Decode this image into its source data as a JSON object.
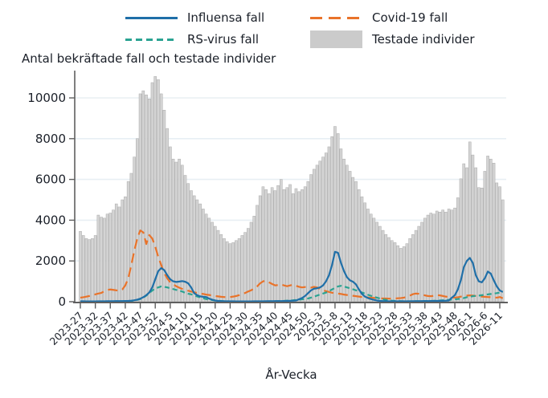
{
  "title": "Antal bekräftade fall och testade individer",
  "xlabel": "År-Vecka",
  "legend": {
    "items": [
      {
        "label": "Influensa fall",
        "marker": "line-solid",
        "color": "#1f6fa8"
      },
      {
        "label": "Covid-19 fall",
        "marker": "line-longdash",
        "color": "#e9732a"
      },
      {
        "label": "RS-virus fall",
        "marker": "line-dash",
        "color": "#2ba392"
      },
      {
        "label": "Testade individer",
        "marker": "box",
        "color": "#cbcbcb"
      }
    ]
  },
  "chart_data": {
    "type": "bar+line combo",
    "title": "Antal bekräftade fall och testade individer",
    "xlabel": "År-Vecka",
    "ylabel": "",
    "ylim": [
      0,
      11200
    ],
    "yticks": [
      0,
      2000,
      4000,
      6000,
      8000,
      10000
    ],
    "grid": "horizontal",
    "legend_position": "top",
    "x_tick_every": 5,
    "x": [
      "2023-27",
      "2023-28",
      "2023-29",
      "2023-30",
      "2023-31",
      "2023-32",
      "2023-33",
      "2023-34",
      "2023-35",
      "2023-36",
      "2023-37",
      "2023-38",
      "2023-39",
      "2023-40",
      "2023-41",
      "2023-42",
      "2023-43",
      "2023-44",
      "2023-45",
      "2023-46",
      "2023-47",
      "2023-48",
      "2023-49",
      "2023-50",
      "2023-51",
      "2023-52",
      "2024-1",
      "2024-2",
      "2024-3",
      "2024-4",
      "2024-5",
      "2024-6",
      "2024-7",
      "2024-8",
      "2024-9",
      "2024-10",
      "2024-11",
      "2024-12",
      "2024-13",
      "2024-14",
      "2024-15",
      "2024-16",
      "2024-17",
      "2024-18",
      "2024-19",
      "2024-20",
      "2024-21",
      "2024-22",
      "2024-23",
      "2024-24",
      "2024-25",
      "2024-26",
      "2024-27",
      "2024-28",
      "2024-29",
      "2024-30",
      "2024-31",
      "2024-32",
      "2024-33",
      "2024-34",
      "2024-35",
      "2024-36",
      "2024-37",
      "2024-38",
      "2024-39",
      "2024-40",
      "2024-41",
      "2024-42",
      "2024-43",
      "2024-44",
      "2024-45",
      "2024-46",
      "2024-47",
      "2024-48",
      "2024-49",
      "2024-50",
      "2024-51",
      "2024-52",
      "2025-1",
      "2025-2",
      "2025-3",
      "2025-4",
      "2025-5",
      "2025-6",
      "2025-7",
      "2025-8",
      "2025-9",
      "2025-10",
      "2025-11",
      "2025-12",
      "2025-13",
      "2025-14",
      "2025-15",
      "2025-16",
      "2025-17",
      "2025-18",
      "2025-19",
      "2025-20",
      "2025-21",
      "2025-22",
      "2025-23",
      "2025-24",
      "2025-25",
      "2025-26",
      "2025-27",
      "2025-28",
      "2025-29",
      "2025-30",
      "2025-31",
      "2025-32",
      "2025-33",
      "2025-34",
      "2025-35",
      "2025-36",
      "2025-37",
      "2025-38",
      "2025-39",
      "2025-40",
      "2025-41",
      "2025-42",
      "2025-43",
      "2025-44",
      "2025-45",
      "2025-46",
      "2025-47",
      "2025-48",
      "2025-49",
      "2025-50",
      "2025-51",
      "2025-52",
      "2026-1",
      "2026-2",
      "2026-3",
      "2026-4",
      "2026-5",
      "2026-6",
      "2026-7",
      "2026-8",
      "2026-9",
      "2026-10",
      "2026-11",
      "2026-12"
    ],
    "bars": {
      "name": "Testade individer",
      "color": "#d4d4d4",
      "border": "#ababab",
      "values": [
        3450,
        3250,
        3100,
        3050,
        3100,
        3250,
        4250,
        4150,
        4100,
        4300,
        4350,
        4500,
        4800,
        4650,
        5000,
        5150,
        5900,
        6300,
        7100,
        8000,
        10200,
        10350,
        10150,
        9950,
        10750,
        11050,
        10900,
        10200,
        9400,
        8500,
        7600,
        7000,
        6850,
        7000,
        6700,
        6200,
        5800,
        5450,
        5200,
        5000,
        4800,
        4550,
        4300,
        4100,
        3900,
        3700,
        3500,
        3300,
        3100,
        2950,
        2850,
        2900,
        3000,
        3100,
        3250,
        3400,
        3600,
        3900,
        4200,
        4730,
        5200,
        5640,
        5500,
        5300,
        5600,
        5450,
        5700,
        6000,
        5500,
        5600,
        5750,
        5300,
        5550,
        5400,
        5500,
        5640,
        5900,
        6240,
        6500,
        6700,
        6900,
        7100,
        7300,
        7600,
        8100,
        8600,
        8250,
        7500,
        7000,
        6700,
        6400,
        6100,
        5900,
        5500,
        5150,
        4850,
        4550,
        4300,
        4100,
        3900,
        3700,
        3500,
        3300,
        3150,
        3000,
        2900,
        2750,
        2620,
        2700,
        2850,
        3100,
        3300,
        3500,
        3700,
        3900,
        4100,
        4250,
        4350,
        4300,
        4450,
        4400,
        4500,
        4400,
        4550,
        4500,
        4600,
        5100,
        6030,
        6770,
        6575,
        7840,
        7200,
        6575,
        5600,
        5580,
        6400,
        7150,
        7000,
        6800,
        5830,
        5640,
        5000
      ]
    },
    "series": [
      {
        "name": "Influensa fall",
        "color": "#1f6fa8",
        "dash": "solid",
        "values": [
          20,
          20,
          15,
          15,
          15,
          15,
          20,
          20,
          20,
          25,
          25,
          25,
          30,
          30,
          30,
          35,
          40,
          50,
          70,
          100,
          150,
          220,
          320,
          450,
          700,
          1100,
          1500,
          1650,
          1550,
          1300,
          1100,
          1000,
          970,
          990,
          1010,
          980,
          900,
          700,
          420,
          320,
          260,
          240,
          230,
          150,
          100,
          60,
          40,
          30,
          25,
          20,
          20,
          20,
          15,
          15,
          15,
          15,
          15,
          15,
          20,
          20,
          20,
          20,
          25,
          25,
          25,
          30,
          30,
          30,
          35,
          40,
          45,
          50,
          60,
          120,
          180,
          280,
          420,
          560,
          640,
          660,
          700,
          800,
          1000,
          1300,
          1800,
          2450,
          2400,
          1900,
          1500,
          1200,
          1050,
          980,
          850,
          600,
          380,
          250,
          180,
          130,
          90,
          60,
          40,
          30,
          25,
          20,
          20,
          20,
          20,
          20,
          20,
          20,
          20,
          25,
          25,
          25,
          30,
          30,
          30,
          35,
          35,
          40,
          40,
          45,
          50,
          60,
          200,
          320,
          600,
          1050,
          1700,
          2000,
          2150,
          1900,
          1300,
          1000,
          950,
          1150,
          1480,
          1380,
          1050,
          750,
          550,
          480
        ]
      },
      {
        "name": "Covid-19 fall",
        "color": "#e9732a",
        "dash": "12 6",
        "values": [
          200,
          220,
          250,
          280,
          320,
          360,
          400,
          430,
          520,
          580,
          600,
          580,
          560,
          540,
          600,
          800,
          1150,
          1800,
          2500,
          3100,
          3500,
          3400,
          2830,
          3270,
          3100,
          2700,
          2200,
          1800,
          1400,
          1150,
          950,
          850,
          760,
          690,
          630,
          580,
          540,
          500,
          460,
          430,
          400,
          380,
          350,
          330,
          300,
          280,
          260,
          240,
          230,
          220,
          230,
          250,
          280,
          320,
          370,
          430,
          500,
          560,
          650,
          750,
          900,
          1000,
          1030,
          950,
          870,
          800,
          820,
          850,
          800,
          760,
          800,
          830,
          780,
          730,
          700,
          720,
          700,
          690,
          730,
          700,
          620,
          560,
          520,
          480,
          440,
          420,
          400,
          380,
          350,
          330,
          310,
          290,
          270,
          250,
          230,
          220,
          210,
          200,
          190,
          180,
          170,
          160,
          160,
          150,
          150,
          160,
          170,
          180,
          200,
          240,
          300,
          370,
          400,
          390,
          360,
          310,
          280,
          270,
          290,
          330,
          310,
          280,
          250,
          230,
          210,
          200,
          220,
          250,
          280,
          300,
          310,
          300,
          280,
          260,
          250,
          240,
          230,
          220,
          210,
          200,
          230,
          170
        ]
      },
      {
        "name": "RS-virus fall",
        "color": "#2ba392",
        "dash": "6 4",
        "values": [
          10,
          10,
          10,
          10,
          10,
          10,
          10,
          10,
          15,
          15,
          15,
          15,
          20,
          20,
          20,
          25,
          30,
          40,
          60,
          90,
          130,
          200,
          300,
          420,
          550,
          650,
          700,
          750,
          730,
          700,
          660,
          620,
          580,
          540,
          500,
          430,
          390,
          360,
          310,
          260,
          210,
          170,
          130,
          100,
          80,
          60,
          45,
          35,
          25,
          20,
          15,
          15,
          10,
          10,
          10,
          10,
          10,
          10,
          10,
          10,
          15,
          15,
          15,
          20,
          20,
          25,
          30,
          35,
          40,
          50,
          60,
          70,
          85,
          100,
          115,
          130,
          160,
          200,
          250,
          300,
          350,
          400,
          450,
          520,
          600,
          680,
          750,
          780,
          750,
          700,
          660,
          610,
          560,
          500,
          450,
          400,
          340,
          290,
          240,
          200,
          160,
          120,
          90,
          70,
          50,
          40,
          30,
          25,
          20,
          20,
          20,
          20,
          25,
          25,
          30,
          30,
          35,
          40,
          45,
          50,
          60,
          70,
          80,
          90,
          100,
          115,
          130,
          150,
          180,
          220,
          250,
          270,
          290,
          300,
          320,
          340,
          360,
          380,
          400,
          420,
          450,
          490
        ]
      }
    ]
  }
}
